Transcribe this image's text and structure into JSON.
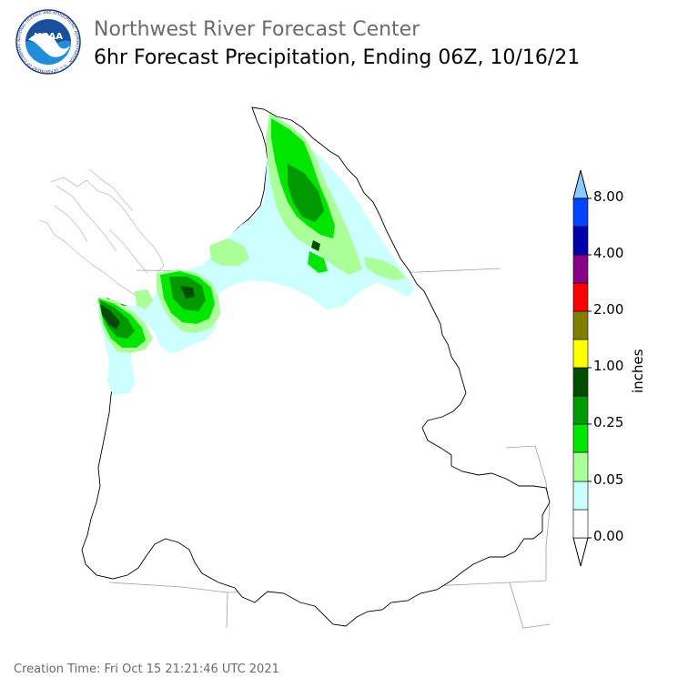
{
  "header": {
    "agency_title": "Northwest River Forecast Center",
    "product_title": "6hr Forecast Precipitation, Ending 06Z, 10/16/21",
    "logo_text": "NOAA",
    "logo_ring_text": "NATIONAL OCEANIC AND ATMOSPHERIC ADMINISTRATION · U.S. DEPARTMENT OF COMMERCE"
  },
  "legend": {
    "units": "inches",
    "tick_labels": [
      "8.00",
      "4.00",
      "2.00",
      "1.00",
      "0.25",
      "0.05",
      "0.00"
    ],
    "colors": [
      "#ffffff",
      "#ccffff",
      "#aaff99",
      "#00e600",
      "#009900",
      "#004d00",
      "#ffff00",
      "#808000",
      "#ff0000",
      "#880088",
      "#0000aa",
      "#0044ff",
      "#88ccff"
    ]
  },
  "footer": {
    "creation_time": "Creation Time: Fri Oct 15 21:21:46 UTC 2021"
  }
}
